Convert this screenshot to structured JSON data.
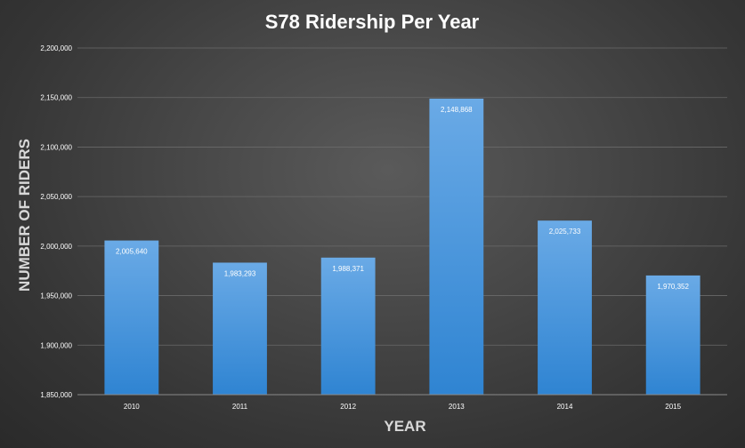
{
  "chart_data": {
    "type": "bar",
    "title": "S78 Ridership Per Year",
    "xlabel": "YEAR",
    "ylabel": "NUMBER OF RIDERS",
    "categories": [
      "2010",
      "2011",
      "2012",
      "2013",
      "2014",
      "2015"
    ],
    "values": [
      2005640,
      1983293,
      1988371,
      2148868,
      2025733,
      1970352
    ],
    "data_labels": [
      "2,005,640",
      "1,983,293",
      "1,988,371",
      "2,148,868",
      "2,025,733",
      "1,970,352"
    ],
    "ylim": [
      1850000,
      2200000
    ],
    "y_ticks": [
      1850000,
      1900000,
      1950000,
      2000000,
      2050000,
      2100000,
      2150000,
      2200000
    ],
    "y_tick_labels": [
      "1,850,000",
      "1,900,000",
      "1,950,000",
      "2,000,000",
      "2,050,000",
      "2,100,000",
      "2,150,000",
      "2,200,000"
    ],
    "grid": true,
    "legend": "none",
    "colors": {
      "bar_top": "#6aaae6",
      "bar_bottom": "#2f84d2",
      "background": "#404040"
    }
  }
}
